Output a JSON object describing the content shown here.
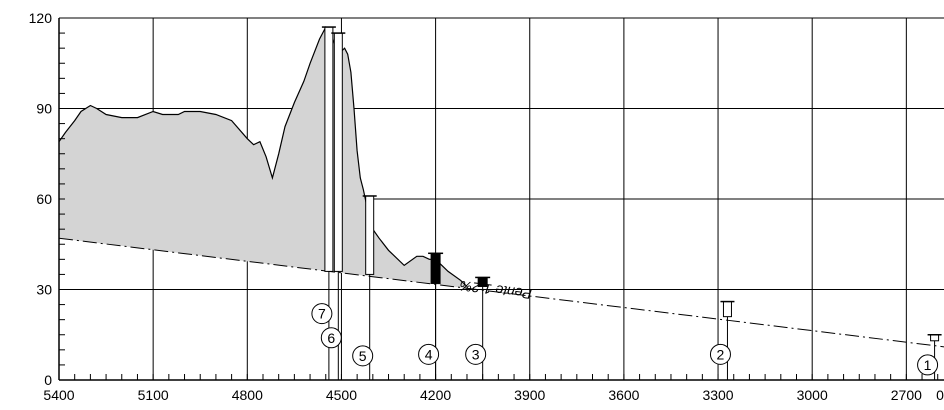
{
  "chart_data": {
    "type": "area",
    "title": "",
    "xlabel": "",
    "ylabel": "",
    "x_reversed": true,
    "xlim": [
      5400,
      2580
    ],
    "ylim": [
      0,
      120
    ],
    "grid": true,
    "x_ticks": [
      "5400",
      "5100",
      "4800",
      "4500",
      "4200",
      "3900",
      "3600",
      "3300",
      "3000",
      "2700",
      "0"
    ],
    "y_ticks": [
      "0",
      "30",
      "60",
      "90",
      "120"
    ],
    "terrain_profile": {
      "x": [
        5400,
        5380,
        5350,
        5330,
        5300,
        5280,
        5250,
        5200,
        5150,
        5100,
        5070,
        5050,
        5020,
        5000,
        4950,
        4900,
        4850,
        4800,
        4780,
        4760,
        4740,
        4720,
        4700,
        4680,
        4650,
        4620,
        4600,
        4570,
        4550,
        4540,
        4520,
        4510,
        4500,
        4490,
        4480,
        4470,
        4460,
        4450,
        4440,
        4430,
        4420,
        4400,
        4380,
        4350,
        4300,
        4260,
        4240,
        4220,
        4200,
        4180,
        4160,
        4120,
        4100
      ],
      "y": [
        79,
        82,
        86,
        89,
        91,
        90,
        88,
        87,
        87,
        89,
        88,
        88,
        88,
        89,
        89,
        88,
        86,
        80,
        78,
        79,
        74,
        67,
        75,
        84,
        92,
        99,
        105,
        113,
        117,
        116,
        111,
        108,
        109,
        110,
        108,
        102,
        90,
        76,
        67,
        63,
        58,
        50,
        47,
        43,
        38,
        41,
        41,
        40,
        40,
        38,
        36,
        33,
        31
      ]
    },
    "slope_line": {
      "x": [
        5400,
        2580
      ],
      "y": [
        47,
        11
      ],
      "label": "Pente 1.2%"
    },
    "wells": [
      {
        "label": "7",
        "x": 4540,
        "top": 117,
        "base": 36,
        "filled": false
      },
      {
        "label": "6",
        "x": 4510,
        "top": 115,
        "base": 36,
        "filled": false
      },
      {
        "label": "5",
        "x": 4410,
        "top": 61,
        "base": 35,
        "filled": false
      },
      {
        "label": "4",
        "x": 4200,
        "top": 42,
        "base": 32,
        "filled": true
      },
      {
        "label": "3",
        "x": 4050,
        "top": 34,
        "base": 31,
        "filled": true
      },
      {
        "label": "2",
        "x": 3270,
        "top": 26,
        "base": 21,
        "filled": false
      },
      {
        "label": "1",
        "x": 2610,
        "top": 15,
        "base": 13,
        "filled": false
      }
    ],
    "colors": {
      "terrain_fill": "#d4d4d4",
      "line": "#000000",
      "grid": "#000000"
    }
  }
}
